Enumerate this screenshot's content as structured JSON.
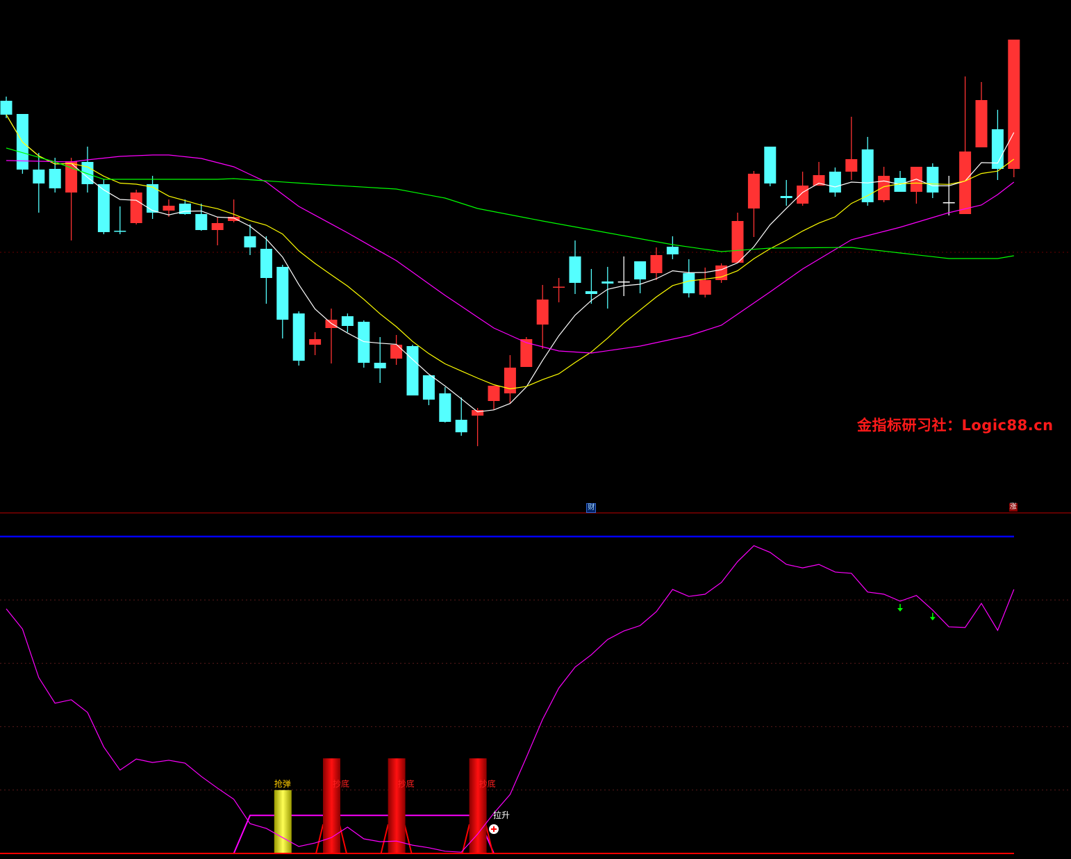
{
  "watermark": "金指标研习社：Logic88.cn",
  "colors": {
    "up": "#ff3333",
    "down": "#54ffff",
    "doji": "#ffffff",
    "ma5": "#ffffff",
    "ma10": "#ffff00",
    "ma_long": "#ff00ff",
    "ma_longest": "#00ff00",
    "osc": "#ff00ff",
    "baseline": "#ff0000",
    "level_line": "#0000ff",
    "buy_bar": "#ff0000",
    "rebound_bar": "#ffff00",
    "arrow": "#00ff00"
  },
  "markers": {
    "cai": "财",
    "zhang": "涨"
  },
  "chart_data": [
    {
      "type": "candlestick",
      "title": "",
      "grid": "single dotted horizontal line",
      "ohlc": [
        [
          55.5,
          56.1,
          53.0,
          53.5
        ],
        [
          53.6,
          53.6,
          45.0,
          45.6
        ],
        [
          45.6,
          48.0,
          39.4,
          43.6
        ],
        [
          45.7,
          47.3,
          42.3,
          42.9
        ],
        [
          42.3,
          47.3,
          35.4,
          46.8
        ],
        [
          46.7,
          48.9,
          42.3,
          43.5
        ],
        [
          43.5,
          44.2,
          36.3,
          36.6
        ],
        [
          36.8,
          40.3,
          36.3,
          36.7
        ],
        [
          37.9,
          42.7,
          37.7,
          42.3
        ],
        [
          43.5,
          44.7,
          38.5,
          39.4
        ],
        [
          39.7,
          41.3,
          38.8,
          40.4
        ],
        [
          40.7,
          41.3,
          39.1,
          39.2
        ],
        [
          39.2,
          40.7,
          36.8,
          36.9
        ],
        [
          36.9,
          38.7,
          34.7,
          37.9
        ],
        [
          38.2,
          41.3,
          38.0,
          38.8
        ],
        [
          36.0,
          37.7,
          33.3,
          34.4
        ],
        [
          34.2,
          36.0,
          26.3,
          30.0
        ],
        [
          31.6,
          31.9,
          21.3,
          24.0
        ],
        [
          24.9,
          25.2,
          17.4,
          18.1
        ],
        [
          20.4,
          22.2,
          18.9,
          21.2
        ],
        [
          22.8,
          25.6,
          17.7,
          24.0
        ],
        [
          24.5,
          24.9,
          22.2,
          23.1
        ],
        [
          23.7,
          23.9,
          17.1,
          17.8
        ],
        [
          17.8,
          21.5,
          14.9,
          17.0
        ],
        [
          18.4,
          21.8,
          17.5,
          20.4
        ],
        [
          20.2,
          20.4,
          13.1,
          13.1
        ],
        [
          16.0,
          16.0,
          11.7,
          12.5
        ],
        [
          13.4,
          14.3,
          9.2,
          9.3
        ],
        [
          9.6,
          12.8,
          7.3,
          7.8
        ],
        [
          10.2,
          11.3,
          5.8,
          11.0
        ],
        [
          12.3,
          14.5,
          11.0,
          14.5
        ],
        [
          13.4,
          18.9,
          12.0,
          17.1
        ],
        [
          17.2,
          21.5,
          17.2,
          21.2
        ],
        [
          23.3,
          29.0,
          19.8,
          26.9
        ],
        [
          28.7,
          30.0,
          26.5,
          28.75
        ],
        [
          33.1,
          35.4,
          27.7,
          29.3
        ],
        [
          28.1,
          31.3,
          26.3,
          27.7
        ],
        [
          29.5,
          31.6,
          25.6,
          29.2
        ],
        [
          29.5,
          33.1,
          27.4,
          29.5
        ],
        [
          32.4,
          32.4,
          27.8,
          29.8
        ],
        [
          30.7,
          34.4,
          29.7,
          33.3
        ],
        [
          34.5,
          36.0,
          32.7,
          33.4
        ],
        [
          30.7,
          32.7,
          27.2,
          27.8
        ],
        [
          27.6,
          31.5,
          27.2,
          29.7
        ],
        [
          29.7,
          32.1,
          29.3,
          31.8
        ],
        [
          32.2,
          39.4,
          32.2,
          38.2
        ],
        [
          40.0,
          45.4,
          35.9,
          45.0
        ],
        [
          48.9,
          48.9,
          43.2,
          43.6
        ],
        [
          41.8,
          44.1,
          40.4,
          41.5
        ],
        [
          40.7,
          45.3,
          40.4,
          43.3
        ],
        [
          43.3,
          46.7,
          43.3,
          44.8
        ],
        [
          45.3,
          45.9,
          41.7,
          42.3
        ],
        [
          45.3,
          53.2,
          44.1,
          47.1
        ],
        [
          48.5,
          50.3,
          40.4,
          40.9
        ],
        [
          41.2,
          46.0,
          40.9,
          44.7
        ],
        [
          44.4,
          45.4,
          42.4,
          42.4
        ],
        [
          42.4,
          46.0,
          40.7,
          46.0
        ],
        [
          46.0,
          46.5,
          41.5,
          42.3
        ],
        [
          40.9,
          44.7,
          39.0,
          40.9
        ],
        [
          39.2,
          59.0,
          39.2,
          48.2
        ],
        [
          48.8,
          58.2,
          48.8,
          55.6
        ],
        [
          51.4,
          54.2,
          44.1,
          45.7
        ],
        [
          45.7,
          64.3,
          44.5,
          64.3
        ]
      ],
      "moving_averages": [
        {
          "computed_from_close": 5,
          "color_key": "ma5"
        },
        {
          "computed_from_close": 10,
          "color_key": "ma10"
        },
        {
          "color_key": "ma_long",
          "points": [
            [
              1,
              46.9
            ],
            [
              5,
              46.7
            ],
            [
              6,
              47.0
            ],
            [
              8,
              47.5
            ],
            [
              10,
              47.7
            ],
            [
              11,
              47.7
            ],
            [
              13,
              47.2
            ],
            [
              15,
              46.0
            ],
            [
              17,
              43.8
            ],
            [
              19,
              40.3
            ],
            [
              22,
              36.5
            ],
            [
              25,
              32.5
            ],
            [
              28,
              27.5
            ],
            [
              31,
              22.8
            ],
            [
              33,
              20.7
            ],
            [
              35,
              19.5
            ],
            [
              37,
              19.2
            ],
            [
              40,
              20.2
            ],
            [
              43,
              21.7
            ],
            [
              45,
              23.2
            ],
            [
              48,
              28.0
            ],
            [
              50,
              31.3
            ],
            [
              53,
              35.5
            ],
            [
              56,
              37.3
            ],
            [
              59,
              39.4
            ],
            [
              61,
              40.5
            ],
            [
              62,
              42.0
            ],
            [
              63,
              43.8
            ]
          ]
        },
        {
          "color_key": "ma_longest",
          "points": [
            [
              1,
              48.7
            ],
            [
              4,
              46.7
            ],
            [
              6,
              45.0
            ],
            [
              7,
              44.2
            ],
            [
              14,
              44.2
            ],
            [
              15,
              44.3
            ],
            [
              20,
              43.5
            ],
            [
              25,
              42.8
            ],
            [
              28,
              41.5
            ],
            [
              30,
              40.0
            ],
            [
              34,
              38.2
            ],
            [
              38,
              36.5
            ],
            [
              42,
              34.8
            ],
            [
              45,
              33.8
            ],
            [
              48,
              34.3
            ],
            [
              53,
              34.4
            ],
            [
              56,
              33.6
            ],
            [
              59,
              32.8
            ],
            [
              62,
              32.8
            ],
            [
              63,
              33.2
            ]
          ]
        }
      ],
      "reference_level": 33.7
    },
    {
      "type": "line",
      "title": "",
      "ylim": [
        0,
        100
      ],
      "grid": "dotted horizontal at 20,40,60,80",
      "level_line": 100,
      "oscillator": [
        77.2,
        70.8,
        55.5,
        47.4,
        48.5,
        44.5,
        33.6,
        26.3,
        29.8,
        28.7,
        29.4,
        28.5,
        24.3,
        20.6,
        17.1,
        9.4,
        7.9,
        5.0,
        2.2,
        3.3,
        5.0,
        8.3,
        4.6,
        3.7,
        3.9,
        2.6,
        1.8,
        0.7,
        0.4,
        6.1,
        12.7,
        18.6,
        30.3,
        42.3,
        52.2,
        58.8,
        62.7,
        67.5,
        70.2,
        71.9,
        76.3,
        83.3,
        81.1,
        81.8,
        85.5,
        92.1,
        97.1,
        95.0,
        91.2,
        90.1,
        91.2,
        88.8,
        88.4,
        82.5,
        81.8,
        79.6,
        81.4,
        76.8,
        71.5,
        71.3,
        78.9,
        70.4,
        83.3
      ],
      "zone_line": {
        "value": 12,
        "from_candle": 16,
        "to_candle": 30
      },
      "signals": [
        {
          "candle": 18,
          "label": "抢弹",
          "kind": "rebound",
          "value": 20
        },
        {
          "candle": 21,
          "label": "抄底",
          "kind": "bottom",
          "value": 30
        },
        {
          "candle": 25,
          "label": "抄底",
          "kind": "bottom",
          "value": 30
        },
        {
          "candle": 30,
          "label": "抄底",
          "kind": "bottom",
          "value": 30
        },
        {
          "candle": 31,
          "label": "拉升",
          "kind": "lift"
        }
      ],
      "down_arrows": [
        56,
        58
      ],
      "event_markers": [
        {
          "candle": 37,
          "key": "cai"
        },
        {
          "candle": 63,
          "key": "zhang"
        }
      ]
    }
  ]
}
